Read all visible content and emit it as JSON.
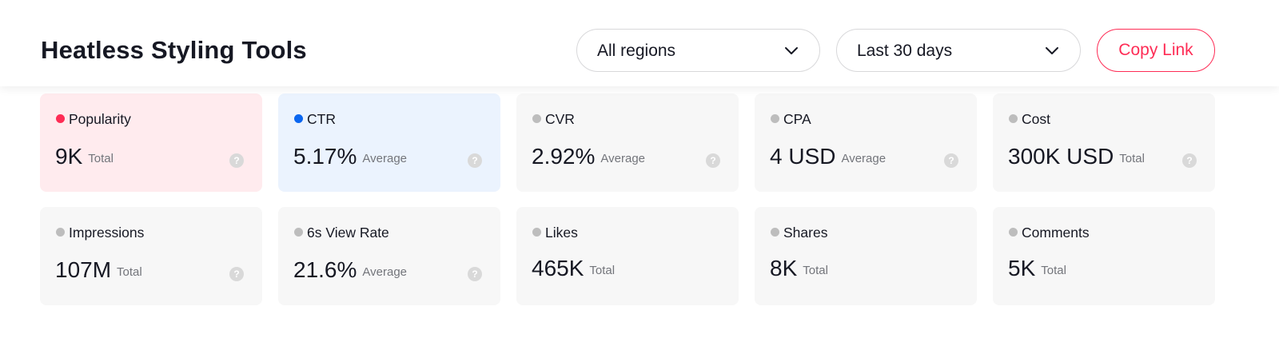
{
  "header": {
    "title": "Heatless Styling Tools",
    "region_select": {
      "value": "All regions",
      "icon": "chevron-down-icon"
    },
    "date_select": {
      "value": "Last 30 days",
      "icon": "chevron-down-icon"
    },
    "copy_link_label": "Copy Link"
  },
  "colors": {
    "accent": "#fe2c55",
    "blue": "#0a66f0",
    "inactive_dot": "#bdbdbd",
    "card_bg": "#f7f7f7",
    "card_active_red_bg": "#ffebee",
    "card_active_blue_bg": "#ebf3fe"
  },
  "metrics": [
    {
      "name": "Popularity",
      "value": "9K",
      "aggregation": "Total",
      "selected": "red",
      "help": true
    },
    {
      "name": "CTR",
      "value": "5.17%",
      "aggregation": "Average",
      "selected": "blue",
      "help": true
    },
    {
      "name": "CVR",
      "value": "2.92%",
      "aggregation": "Average",
      "selected": "none",
      "help": true
    },
    {
      "name": "CPA",
      "value": "4 USD",
      "aggregation": "Average",
      "selected": "none",
      "help": true
    },
    {
      "name": "Cost",
      "value": "300K USD",
      "aggregation": "Total",
      "selected": "none",
      "help": true
    },
    {
      "name": "Impressions",
      "value": "107M",
      "aggregation": "Total",
      "selected": "none",
      "help": true
    },
    {
      "name": "6s View Rate",
      "value": "21.6%",
      "aggregation": "Average",
      "selected": "none",
      "help": true
    },
    {
      "name": "Likes",
      "value": "465K",
      "aggregation": "Total",
      "selected": "none",
      "help": false
    },
    {
      "name": "Shares",
      "value": "8K",
      "aggregation": "Total",
      "selected": "none",
      "help": false
    },
    {
      "name": "Comments",
      "value": "5K",
      "aggregation": "Total",
      "selected": "none",
      "help": false
    }
  ]
}
